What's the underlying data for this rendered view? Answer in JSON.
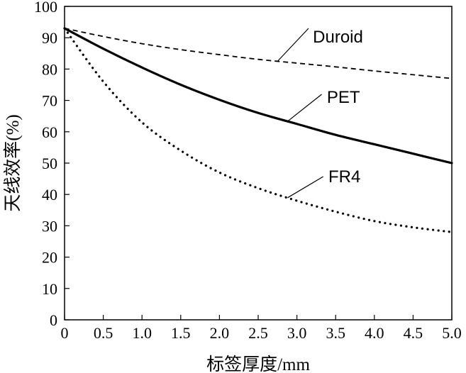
{
  "chart_data": {
    "type": "line",
    "title": "",
    "xlabel": "标签厚度/mm",
    "ylabel": "天线效率(%)",
    "xlim": [
      0,
      5.0
    ],
    "ylim": [
      0,
      100
    ],
    "x_ticks": [
      0,
      0.5,
      1.0,
      1.5,
      2.0,
      2.5,
      3.0,
      3.5,
      4.0,
      4.5,
      5.0
    ],
    "x_tick_labels": [
      "0",
      "0.5",
      "1.0",
      "1.5",
      "2.0",
      "2.5",
      "3.0",
      "3.5",
      "4.0",
      "4.5",
      "5.0"
    ],
    "y_ticks": [
      0,
      10,
      20,
      30,
      40,
      50,
      60,
      70,
      80,
      90,
      100
    ],
    "y_tick_labels": [
      "0",
      "10",
      "20",
      "30",
      "40",
      "50",
      "60",
      "70",
      "80",
      "90",
      "100"
    ],
    "grid": false,
    "legend": "inline labels",
    "series": [
      {
        "name": "Duroid",
        "style": "dashed",
        "x": [
          0,
          0.5,
          1.0,
          1.5,
          2.0,
          2.5,
          3.0,
          3.5,
          4.0,
          4.5,
          5.0
        ],
        "y": [
          93,
          90.4,
          88.1,
          86.2,
          84.6,
          83.1,
          81.9,
          80.7,
          79.4,
          78.2,
          77
        ]
      },
      {
        "name": "PET",
        "style": "solid",
        "x": [
          0,
          0.5,
          1.0,
          1.5,
          2.0,
          2.5,
          3.0,
          3.5,
          4.0,
          4.5,
          5.0
        ],
        "y": [
          93,
          86.5,
          80.5,
          75,
          70.2,
          66,
          62.5,
          59,
          56,
          53,
          50
        ]
      },
      {
        "name": "FR4",
        "style": "dotted",
        "x": [
          0,
          0.5,
          1.0,
          1.5,
          2.0,
          2.5,
          3.0,
          3.5,
          4.0,
          4.5,
          5.0
        ],
        "y": [
          93,
          76,
          63,
          54,
          47,
          42,
          38,
          34.5,
          31.5,
          29.5,
          28
        ]
      }
    ],
    "annotations": [
      {
        "series": "Duroid",
        "text": "Duroid"
      },
      {
        "series": "PET",
        "text": "PET"
      },
      {
        "series": "FR4",
        "text": "FR4"
      }
    ]
  }
}
